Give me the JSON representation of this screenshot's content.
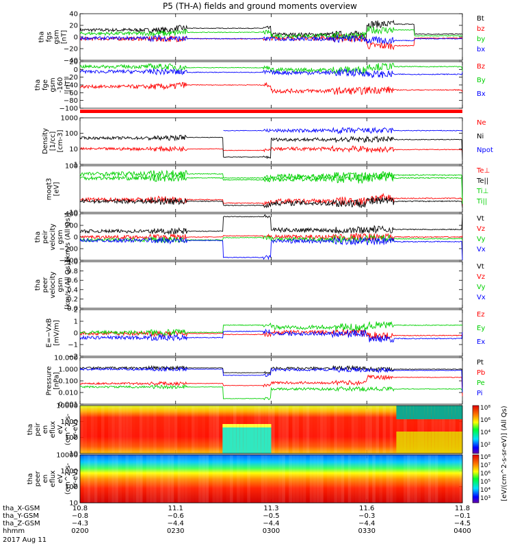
{
  "title": "P5 (TH-A) fields and ground moments overview",
  "date_label": "2017 Aug 11",
  "colors": {
    "black": "#000000",
    "red": "#ff0000",
    "green": "#00d000",
    "blue": "#0000ff"
  },
  "panels": [
    {
      "id": "fgs",
      "ylabel": [
        "tha",
        "fgs",
        "gsm",
        "[nT]"
      ],
      "yticks": [
        "40",
        "20",
        "0",
        "−20",
        "−40"
      ],
      "legend": [
        {
          "text": "Bt",
          "color": "black"
        },
        {
          "text": "bz",
          "color": "red"
        },
        {
          "text": "by",
          "color": "green"
        },
        {
          "text": "bx",
          "color": "blue"
        }
      ]
    },
    {
      "id": "fge",
      "ylabel": [
        "tha",
        "fge",
        "gsm",
        "-160",
        "[nT]"
      ],
      "yticks": [
        "20",
        "0",
        "−20",
        "−40",
        "−60",
        "−80",
        "−100"
      ],
      "legend": [
        {
          "text": "Bz",
          "color": "red"
        },
        {
          "text": "By",
          "color": "green"
        },
        {
          "text": "Bx",
          "color": "blue"
        }
      ]
    },
    {
      "id": "density",
      "ylabel": [
        "Density",
        "[1/cc]",
        "[cm-3]"
      ],
      "yticks": [
        "1000",
        "100",
        "10",
        "1"
      ],
      "legend": [
        {
          "text": "Ne",
          "color": "red"
        },
        {
          "text": "Ni",
          "color": "black"
        },
        {
          "text": "Npot",
          "color": "blue"
        }
      ]
    },
    {
      "id": "temp",
      "ylabel": [
        "moqt3",
        "[eV]"
      ],
      "yticks": [
        "100",
        "10"
      ],
      "legend": [
        {
          "text": "Te⊥",
          "color": "red"
        },
        {
          "text": "Te||",
          "color": "black"
        },
        {
          "text": "Ti⊥",
          "color": "green"
        },
        {
          "text": "Ti||",
          "color": "green"
        }
      ]
    },
    {
      "id": "vpeir",
      "ylabel": [
        "tha",
        "peir",
        "velocity",
        "gsm",
        "[km/s (All Qs)]"
      ],
      "yticks": [
        "400",
        "200",
        "0",
        "−200",
        "−400"
      ],
      "legend": [
        {
          "text": "Vt",
          "color": "black"
        },
        {
          "text": "Vz",
          "color": "red"
        },
        {
          "text": "Vy",
          "color": "green"
        },
        {
          "text": "Vx",
          "color": "blue"
        }
      ]
    },
    {
      "id": "vpeer",
      "ylabel": [
        "tha",
        "peer",
        "velocity",
        "gsm",
        "[km/s (All Qs)]"
      ],
      "yticks": [
        "1.0",
        "0.8",
        "0.6",
        "0.4",
        "0.2",
        "0.0"
      ],
      "legend": [
        {
          "text": "Vt",
          "color": "black"
        },
        {
          "text": "Vz",
          "color": "red"
        },
        {
          "text": "Vy",
          "color": "green"
        },
        {
          "text": "Vx",
          "color": "blue"
        }
      ]
    },
    {
      "id": "efield",
      "ylabel": [
        "E=−VxB",
        "[mV/m]"
      ],
      "yticks": [
        "2",
        "1",
        "0",
        "−1",
        "−2"
      ],
      "legend": [
        {
          "text": "Ez",
          "color": "red"
        },
        {
          "text": "Ey",
          "color": "green"
        },
        {
          "text": "Ex",
          "color": "blue"
        }
      ]
    },
    {
      "id": "pressure",
      "ylabel": [
        "Pressure",
        "[nPa]"
      ],
      "yticks": [
        "10.000",
        "1.000",
        "0.100",
        "0.010",
        "0.001"
      ],
      "legend": [
        {
          "text": "Pt",
          "color": "black"
        },
        {
          "text": "Pb",
          "color": "red"
        },
        {
          "text": "Pe",
          "color": "green"
        },
        {
          "text": "Pi",
          "color": "blue"
        }
      ]
    },
    {
      "id": "peir_spec",
      "ylabel": [
        "tha",
        "peir",
        "en",
        "eflux",
        "eV",
        "(cm^2-s-",
        "sr-eV)"
      ],
      "yticks": [
        "10000",
        "1000",
        "100",
        "10"
      ],
      "legend": []
    },
    {
      "id": "peer_spec",
      "ylabel": [
        "tha",
        "peer",
        "en",
        "eflux",
        "eV",
        "(cm^2-s-",
        "sr-eV)"
      ],
      "yticks": [
        "10000",
        "1000",
        "100",
        "10"
      ],
      "legend": []
    }
  ],
  "colorbar": {
    "label": "[eV/(cm^2-s-sr-eV)] (All Qs)",
    "ticks1": [
      "10⁸",
      "10⁶",
      "10⁴",
      "10²"
    ],
    "ticks2": [
      "10⁸",
      "10⁷",
      "10⁶",
      "10⁵",
      "10⁴",
      "10³"
    ]
  },
  "xaxis": {
    "row_labels": [
      "tha_X-GSM",
      "tha_Y-GSM",
      "tha_Z-GSM",
      "hhmm"
    ],
    "ticks": [
      {
        "x": "10.8",
        "y": "−0.8",
        "z": "−4.3",
        "t": "0200"
      },
      {
        "x": "11.1",
        "y": "−0.6",
        "z": "−4.4",
        "t": "0230"
      },
      {
        "x": "11.3",
        "y": "−0.5",
        "z": "−4.4",
        "t": "0300"
      },
      {
        "x": "11.6",
        "y": "−0.3",
        "z": "−4.4",
        "t": "0330"
      },
      {
        "x": "11.8",
        "y": "−0.1",
        "z": "−4.5",
        "t": "0400"
      }
    ]
  },
  "chart_data": [
    {
      "type": "line",
      "title": "P5 (TH-A) fields and ground moments overview",
      "ylabel": "tha fgs gsm [nT]",
      "ylim": [
        -40,
        40
      ],
      "series": [
        {
          "name": "Bt",
          "x_hhmm": [
            "0200",
            "0230",
            "0300",
            "0330",
            "0345",
            "0400"
          ],
          "values": [
            12,
            15,
            4,
            22,
            5,
            4
          ]
        },
        {
          "name": "bz",
          "x_hhmm": [
            "0200",
            "0230",
            "0300",
            "0330",
            "0345",
            "0400"
          ],
          "values": [
            -3,
            -3,
            -2,
            -15,
            -2,
            -2
          ]
        },
        {
          "name": "by",
          "x_hhmm": [
            "0200",
            "0230",
            "0300",
            "0330",
            "0345",
            "0400"
          ],
          "values": [
            6,
            8,
            2,
            12,
            2,
            2
          ]
        },
        {
          "name": "bx",
          "x_hhmm": [
            "0200",
            "0230",
            "0300",
            "0330",
            "0345",
            "0400"
          ],
          "values": [
            -2,
            -3,
            -3,
            -6,
            -3,
            -3
          ]
        }
      ]
    },
    {
      "type": "line",
      "ylabel": "tha fge gsm -160 [nT]",
      "ylim": [
        -110,
        30
      ],
      "series": [
        {
          "name": "Bz",
          "x_hhmm": [
            "0200",
            "0230",
            "0300",
            "0330",
            "0400"
          ],
          "values": [
            -45,
            -40,
            -58,
            -55,
            -60
          ]
        },
        {
          "name": "By",
          "x_hhmm": [
            "0200",
            "0230",
            "0300",
            "0330",
            "0400"
          ],
          "values": [
            15,
            12,
            5,
            15,
            3
          ]
        },
        {
          "name": "Bx",
          "x_hhmm": [
            "0200",
            "0230",
            "0300",
            "0330",
            "0400"
          ],
          "values": [
            0,
            -2,
            -3,
            -8,
            -2
          ]
        }
      ]
    },
    {
      "type": "line",
      "ylabel": "Density [1/cc]",
      "log": true,
      "ylim": [
        1,
        1000
      ],
      "series": [
        {
          "name": "Ne",
          "x_hhmm": [
            "0200",
            "0230",
            "0245",
            "0300",
            "0330",
            "0400"
          ],
          "values": [
            10,
            10,
            8,
            10,
            9,
            6
          ]
        },
        {
          "name": "Ni",
          "x_hhmm": [
            "0200",
            "0230",
            "0245",
            "0300",
            "0330",
            "0400"
          ],
          "values": [
            50,
            55,
            3,
            40,
            40,
            2
          ]
        },
        {
          "name": "Npot",
          "x_hhmm": [
            "0200",
            "0230",
            "0245",
            "0300",
            "0330",
            "0400"
          ],
          "values": [
            null,
            null,
            150,
            null,
            null,
            130
          ]
        }
      ]
    },
    {
      "type": "line",
      "ylabel": "moqt3 [eV]",
      "log": true,
      "ylim": [
        10,
        1000
      ],
      "series": [
        {
          "name": "Te⊥",
          "x_hhmm": [
            "0200",
            "0245",
            "0300",
            "0330",
            "0400"
          ],
          "values": [
            35,
            25,
            30,
            40,
            18
          ]
        },
        {
          "name": "Te||",
          "x_hhmm": [
            "0200",
            "0245",
            "0300",
            "0330",
            "0400"
          ],
          "values": [
            30,
            20,
            25,
            30,
            15
          ]
        },
        {
          "name": "Ti⊥",
          "x_hhmm": [
            "0200",
            "0245",
            "0300",
            "0330",
            "0400"
          ],
          "values": [
            450,
            300,
            350,
            400,
            25
          ]
        },
        {
          "name": "Ti||",
          "x_hhmm": [
            "0200",
            "0245",
            "0300",
            "0330",
            "0400"
          ],
          "values": [
            300,
            250,
            270,
            300,
            22
          ]
        }
      ]
    },
    {
      "type": "line",
      "ylabel": "tha peir velocity gsm [km/s (All Qs)]",
      "ylim": [
        -400,
        400
      ],
      "series": [
        {
          "name": "Vt",
          "x_hhmm": [
            "0200",
            "0245",
            "0300",
            "0330",
            "0400"
          ],
          "values": [
            100,
            350,
            120,
            130,
            390
          ]
        },
        {
          "name": "Vz",
          "x_hhmm": [
            "0200",
            "0245",
            "0300",
            "0330",
            "0400"
          ],
          "values": [
            0,
            20,
            0,
            0,
            30
          ]
        },
        {
          "name": "Vy",
          "x_hhmm": [
            "0200",
            "0245",
            "0300",
            "0330",
            "0400"
          ],
          "values": [
            -50,
            -10,
            -40,
            -30,
            -60
          ]
        },
        {
          "name": "Vx",
          "x_hhmm": [
            "0200",
            "0245",
            "0300",
            "0330",
            "0400"
          ],
          "values": [
            -60,
            -350,
            -70,
            -80,
            -390
          ]
        }
      ]
    },
    {
      "type": "line",
      "ylabel": "tha peer velocity gsm [km/s (All Qs)]",
      "ylim": [
        0,
        1.0
      ],
      "series": []
    },
    {
      "type": "line",
      "ylabel": "E=-VxB [mV/m]",
      "ylim": [
        -2,
        2.5
      ],
      "series": [
        {
          "name": "Ez",
          "x_hhmm": [
            "0200",
            "0245",
            "0300",
            "0330",
            "0400"
          ],
          "values": [
            0.2,
            0.1,
            0.3,
            0,
            0.2
          ]
        },
        {
          "name": "Ey",
          "x_hhmm": [
            "0200",
            "0245",
            "0300",
            "0330",
            "0400"
          ],
          "values": [
            0.3,
            1.0,
            0.8,
            1.0,
            1.0
          ]
        },
        {
          "name": "Ex",
          "x_hhmm": [
            "0200",
            "0245",
            "0300",
            "0330",
            "0400"
          ],
          "values": [
            -0.2,
            0.4,
            0.2,
            -0.3,
            0.3
          ]
        }
      ]
    },
    {
      "type": "line",
      "ylabel": "Pressure [nPa]",
      "log": true,
      "ylim": [
        0.001,
        10
      ],
      "series": [
        {
          "name": "Pt",
          "x_hhmm": [
            "0200",
            "0245",
            "0300",
            "0330",
            "0400"
          ],
          "values": [
            1.3,
            0.5,
            1.2,
            1.0,
            0.03
          ]
        },
        {
          "name": "Pb",
          "x_hhmm": [
            "0200",
            "0245",
            "0300",
            "0330",
            "0400"
          ],
          "values": [
            0.06,
            0.04,
            0.07,
            0.2,
            0.005
          ]
        },
        {
          "name": "Pe",
          "x_hhmm": [
            "0200",
            "0245",
            "0300",
            "0330",
            "0400"
          ],
          "values": [
            0.03,
            0.003,
            0.02,
            0.02,
            0.01
          ]
        },
        {
          "name": "Pi",
          "x_hhmm": [
            "0200",
            "0245",
            "0300",
            "0330",
            "0400"
          ],
          "values": [
            1.0,
            0.3,
            0.9,
            0.8,
            0.01
          ]
        }
      ]
    },
    {
      "type": "heatmap",
      "ylabel": "tha peir en eflux eV/(cm^2-s-sr-eV)",
      "log": true,
      "ylim": [
        5,
        25000
      ]
    },
    {
      "type": "heatmap",
      "ylabel": "tha peer en eflux eV/(cm^2-s-sr-eV)",
      "log": true,
      "ylim": [
        5,
        25000
      ]
    }
  ]
}
